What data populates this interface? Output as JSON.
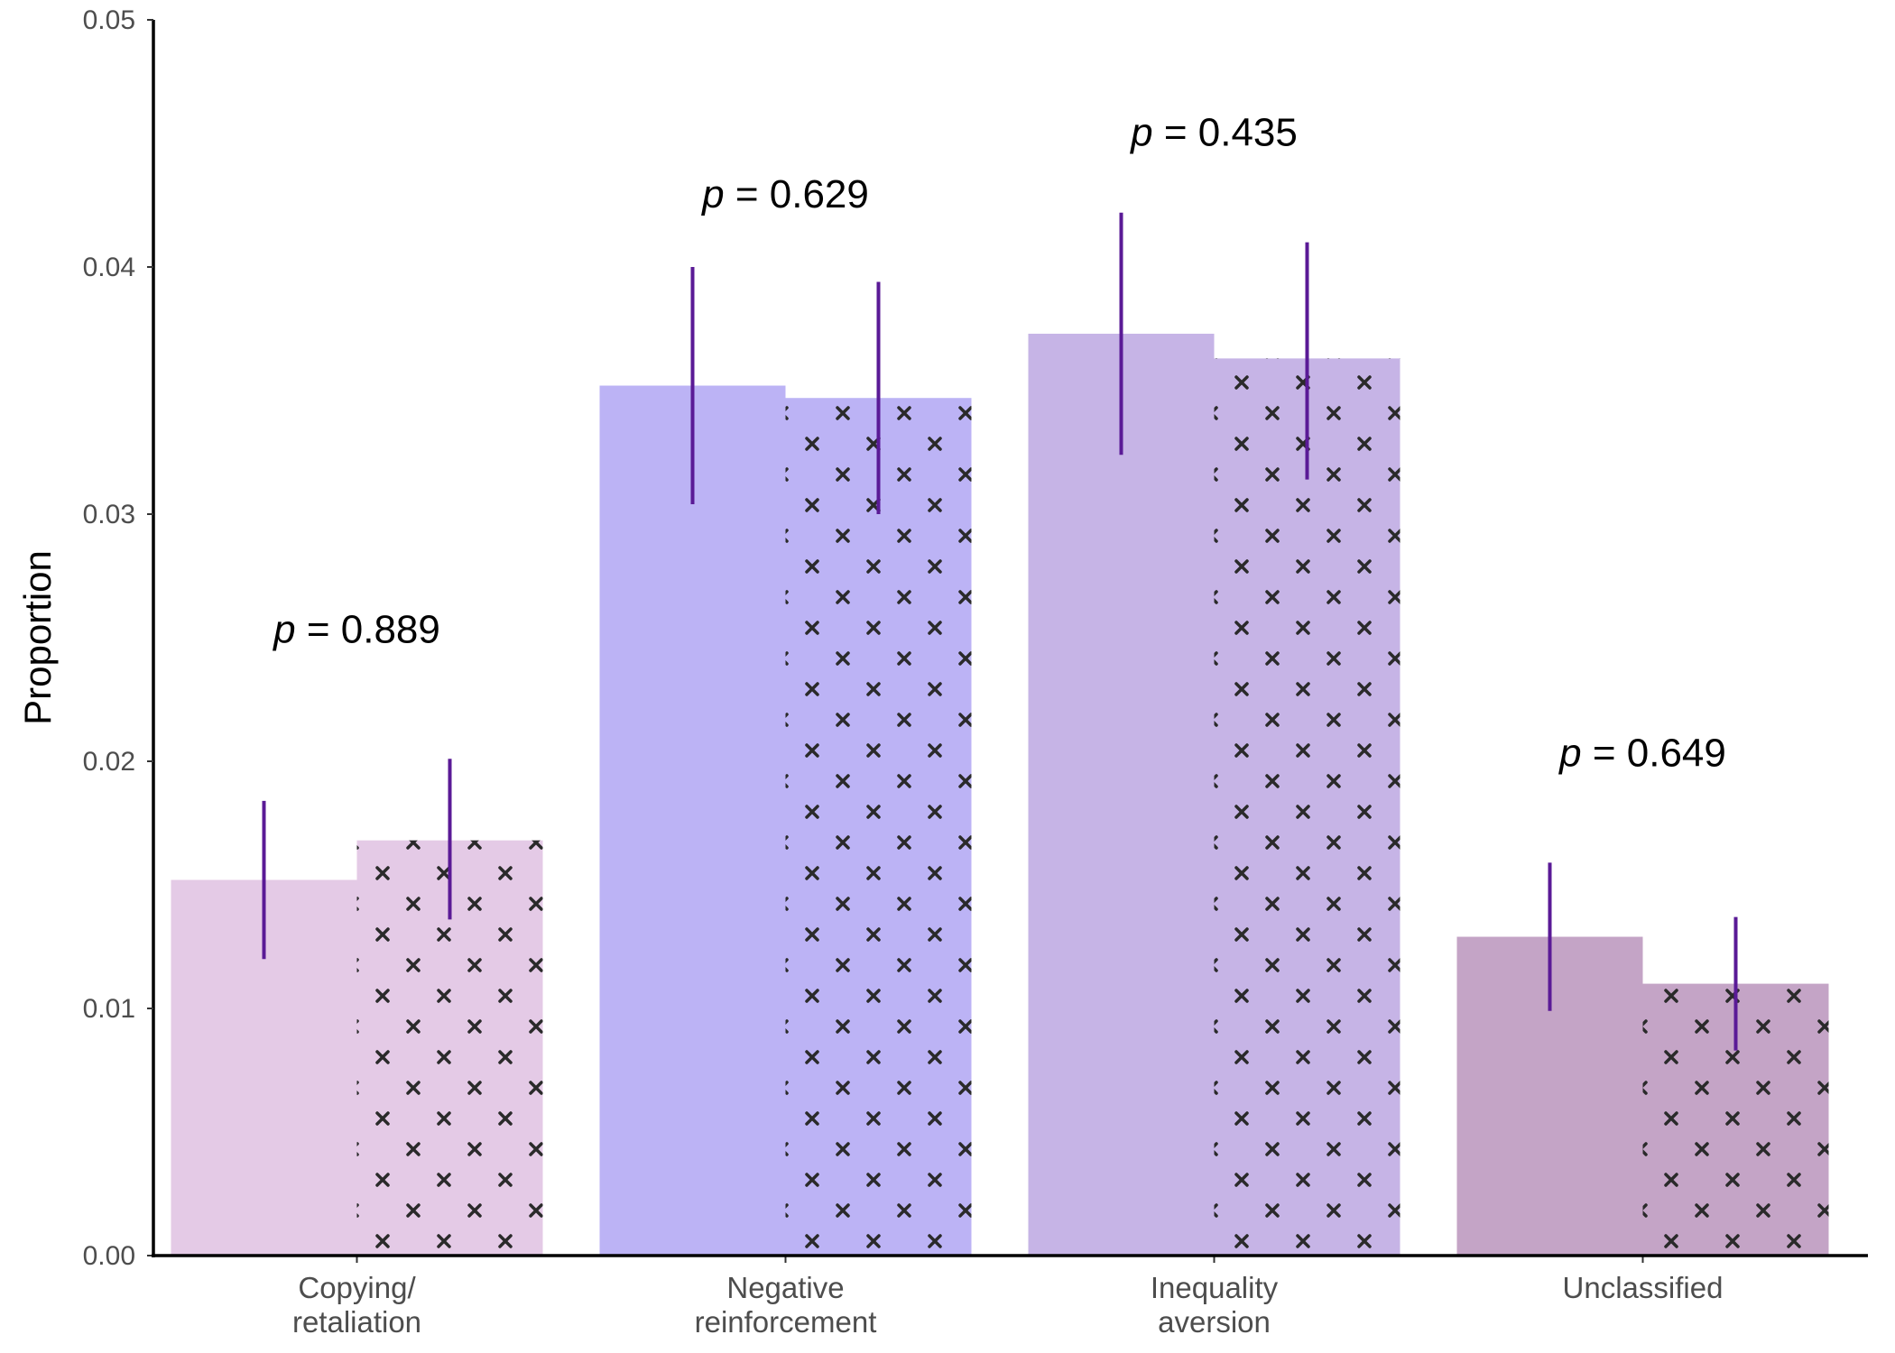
{
  "chart_data": {
    "type": "bar",
    "ylabel": "Proportion",
    "xlabel": "",
    "ylim": [
      0,
      0.05
    ],
    "yticks": [
      "0.00",
      "0.01",
      "0.02",
      "0.03",
      "0.04",
      "0.05"
    ],
    "grid": false,
    "legend": "none",
    "categories": [
      {
        "line1": "Copying/",
        "line2": "retaliation",
        "color": "#e4cae6"
      },
      {
        "line1": "Negative",
        "line2": "reinforcement",
        "color": "#bcb3f5"
      },
      {
        "line1": "Inequality",
        "line2": "aversion",
        "color": "#c6b4e6"
      },
      {
        "line1": "Unclassified",
        "line2": "",
        "color": "#c4a4c6"
      }
    ],
    "series": [
      {
        "pattern": "none",
        "values": [
          0.0152,
          0.0352,
          0.0373,
          0.0129
        ],
        "error_low": [
          0.012,
          0.0304,
          0.0324,
          0.0099
        ],
        "error_high": [
          0.0184,
          0.04,
          0.0422,
          0.0159
        ]
      },
      {
        "pattern": "crosses",
        "values": [
          0.0168,
          0.0347,
          0.0363,
          0.011
        ],
        "error_low": [
          0.0136,
          0.03,
          0.0314,
          0.0083
        ],
        "error_high": [
          0.0201,
          0.0394,
          0.041,
          0.0137
        ]
      }
    ],
    "p_values": [
      {
        "p": "p",
        "rest": " = 0.889",
        "y": 0.0248
      },
      {
        "p": "p",
        "rest": " = 0.629",
        "y": 0.0424
      },
      {
        "p": "p",
        "rest": " = 0.435",
        "y": 0.0449
      },
      {
        "p": "p",
        "rest": " = 0.649",
        "y": 0.0198
      }
    ],
    "error_bar_color": "#5a1a96"
  }
}
